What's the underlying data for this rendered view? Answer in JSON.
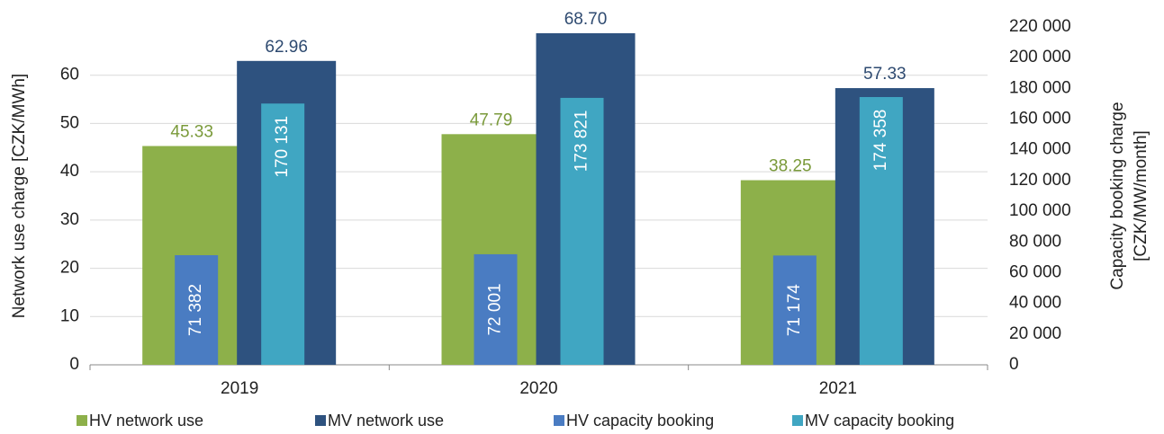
{
  "chart_data": {
    "type": "bar",
    "ylabel": "Network use charge [CZK/MWh]",
    "y2label": [
      "Capacity booking charge",
      "[CZK/MW/month]"
    ],
    "categories": [
      "2019",
      "2020",
      "2021"
    ],
    "series": [
      {
        "name": "HV network use",
        "color": "#8db04a",
        "label_color": "#7a9a3a",
        "values": [
          45.33,
          47.79,
          38.25
        ],
        "value_labels": [
          "45.33",
          "47.79",
          "38.25"
        ]
      },
      {
        "name": "MV network use",
        "color": "#2e527f",
        "label_color": "#2e4a70",
        "values": [
          62.96,
          68.7,
          57.33
        ],
        "value_labels": [
          "62.96",
          "68.70",
          "57.33"
        ]
      },
      {
        "name": "HV capacity booking",
        "color": "#4a7cc2",
        "label_color": "#ffffff",
        "axis": "y2",
        "values": [
          71382,
          72001,
          71174
        ],
        "value_labels": [
          "71 382",
          "72 001",
          "71 174"
        ]
      },
      {
        "name": "MV capacity booking",
        "color": "#40a6c2",
        "label_color": "#ffffff",
        "axis": "y2",
        "values": [
          170131,
          173821,
          174358
        ],
        "value_labels": [
          "170 131",
          "173 821",
          "174 358"
        ]
      }
    ],
    "ylim": [
      0,
      70
    ],
    "yticks": [
      0,
      10,
      20,
      30,
      40,
      50,
      60
    ],
    "y2lim": [
      0,
      220000
    ],
    "y2ticks": [
      0,
      {
        "value": 20000,
        "label": "20 000"
      },
      {
        "value": 40000,
        "label": "40 000"
      },
      {
        "value": 60000,
        "label": "60 000"
      },
      {
        "value": 80000,
        "label": "80 000"
      },
      {
        "value": 100000,
        "label": "100 000"
      },
      {
        "value": 120000,
        "label": "120 000"
      },
      {
        "value": 140000,
        "label": "140 000"
      },
      {
        "value": 160000,
        "label": "160 000"
      },
      {
        "value": 180000,
        "label": "180 000"
      },
      {
        "value": 200000,
        "label": "200 000"
      },
      {
        "value": 220000,
        "label": "220 000"
      }
    ],
    "grid": true,
    "legend": "bottom"
  }
}
